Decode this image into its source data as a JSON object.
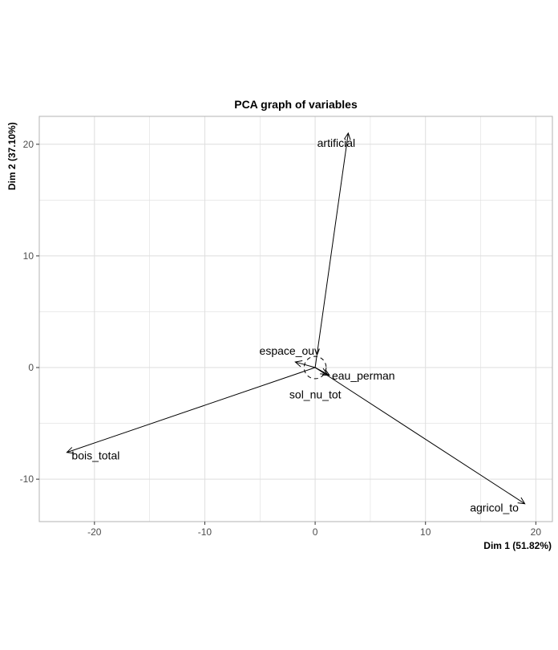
{
  "chart_data": {
    "type": "scatter",
    "subtype": "pca-variables-biplot",
    "title": "PCA graph of variables",
    "xlabel": "Dim 1 (51.82%)",
    "ylabel": "Dim 2 (37.10%)",
    "xlim": [
      -25,
      21.5
    ],
    "ylim": [
      -13.8,
      22.5
    ],
    "xticks": [
      -20,
      -10,
      0,
      10,
      20
    ],
    "yticks": [
      -10,
      0,
      10,
      20
    ],
    "grid": true,
    "legend": "none",
    "variables": [
      {
        "name": "artificial",
        "x": 3.0,
        "y": 21.0
      },
      {
        "name": "espace_ouv",
        "x": -1.8,
        "y": 0.5
      },
      {
        "name": "eau_perman",
        "x": 1.3,
        "y": -0.7
      },
      {
        "name": "sol_nu_tot",
        "x": 1.1,
        "y": -0.6
      },
      {
        "name": "bois_total",
        "x": -22.5,
        "y": -7.6
      },
      {
        "name": "agricol_to",
        "x": 19.0,
        "y": -12.2
      }
    ],
    "unit_circle": {
      "center": [
        0,
        0
      ],
      "radius": 1
    },
    "colors": {
      "arrow": "#000000",
      "grid": "#dedede",
      "border": "#b3b3b3",
      "tick": "#4d4d4d"
    }
  }
}
